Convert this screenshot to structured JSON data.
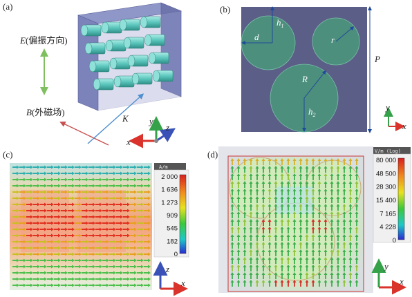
{
  "panel_a": {
    "label": "(a)",
    "e_label": "E(偏振方向)",
    "b_label": "B(外磁场)",
    "k_label": "K",
    "axes": {
      "z": "z",
      "y": "y",
      "x": "x"
    }
  },
  "panel_b": {
    "label": "(b)",
    "h1": "h",
    "h1_sub": "1",
    "d": "d",
    "r": "r",
    "R": "R",
    "h2": "h",
    "h2_sub": "2",
    "P": "P",
    "axes": {
      "y": "y",
      "x": "x"
    }
  },
  "panel_c": {
    "label": "(c)",
    "colorbar_title": "A/m",
    "ticks": [
      "2 000",
      "1 636",
      "1 273",
      "909",
      "545",
      "182",
      "0"
    ],
    "axes": {
      "z": "z",
      "x": "x"
    }
  },
  "panel_d": {
    "label": "(d)",
    "colorbar_title": "V/m (Log)",
    "ticks": [
      "80 000",
      "48 500",
      "28 300",
      "15 400",
      "7 165",
      "4 228",
      "0"
    ],
    "axes": {
      "y": "y",
      "x": "x"
    }
  }
}
